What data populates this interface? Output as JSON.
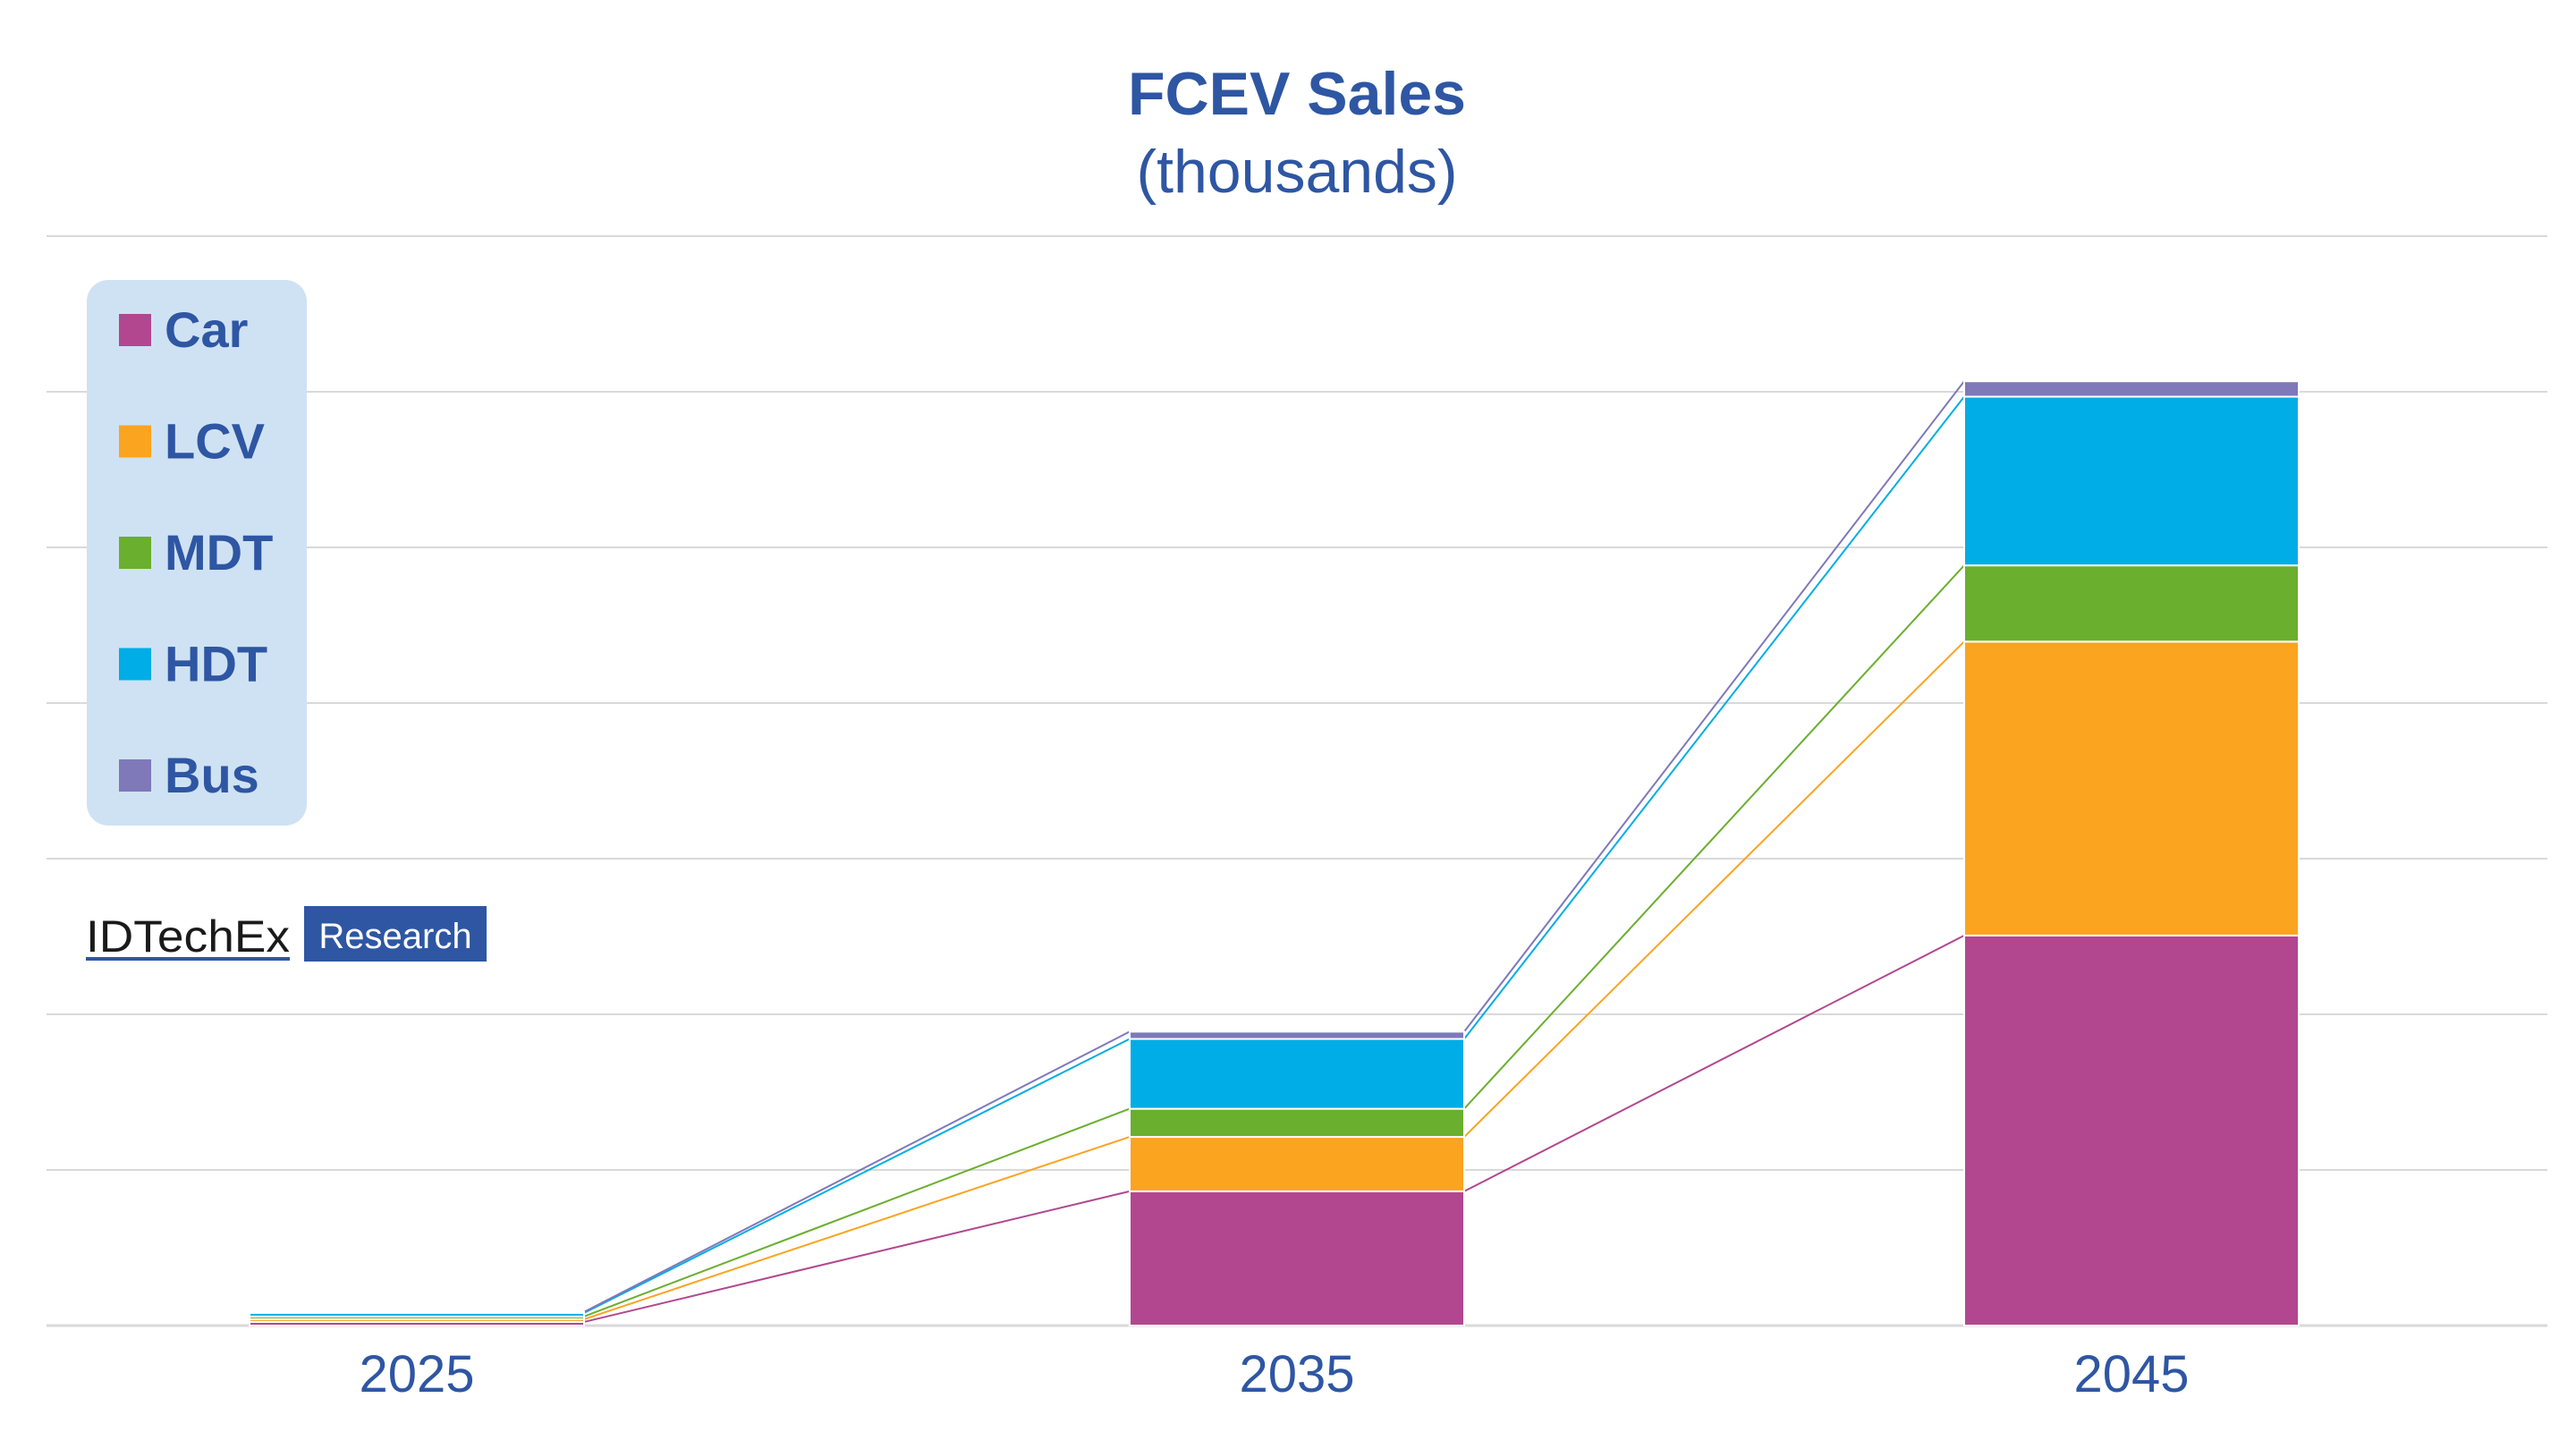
{
  "chart_data": {
    "type": "bar",
    "stacked": true,
    "title": "FCEV Sales",
    "subtitle": "(thousands)",
    "categories": [
      "2025",
      "2035",
      "2045"
    ],
    "series": [
      {
        "name": "Car",
        "color": "#B2478F",
        "values": [
          4,
          148,
          430
        ]
      },
      {
        "name": "LCV",
        "color": "#FAA420",
        "values": [
          3,
          60,
          324
        ]
      },
      {
        "name": "MDT",
        "color": "#6AAF2E",
        "values": [
          3,
          31,
          84
        ]
      },
      {
        "name": "HDT",
        "color": "#00ADE6",
        "values": [
          4,
          77,
          186
        ]
      },
      {
        "name": "Bus",
        "color": "#7F78B9",
        "values": [
          1,
          8,
          17
        ]
      }
    ],
    "ylim": [
      0,
      1200
    ],
    "grid": true,
    "legend_position": "top-left",
    "connector_lines": true
  },
  "colors": {
    "title": "#2E56A3",
    "tick_label": "#2E56A3",
    "grid": "#D9D9D9",
    "legend_bg": "#CFE2F3",
    "logo_dark": "#1A1A1A",
    "logo_box": "#2E56A3"
  },
  "logo": {
    "brand": "IDTechEx",
    "tag": "Research"
  }
}
